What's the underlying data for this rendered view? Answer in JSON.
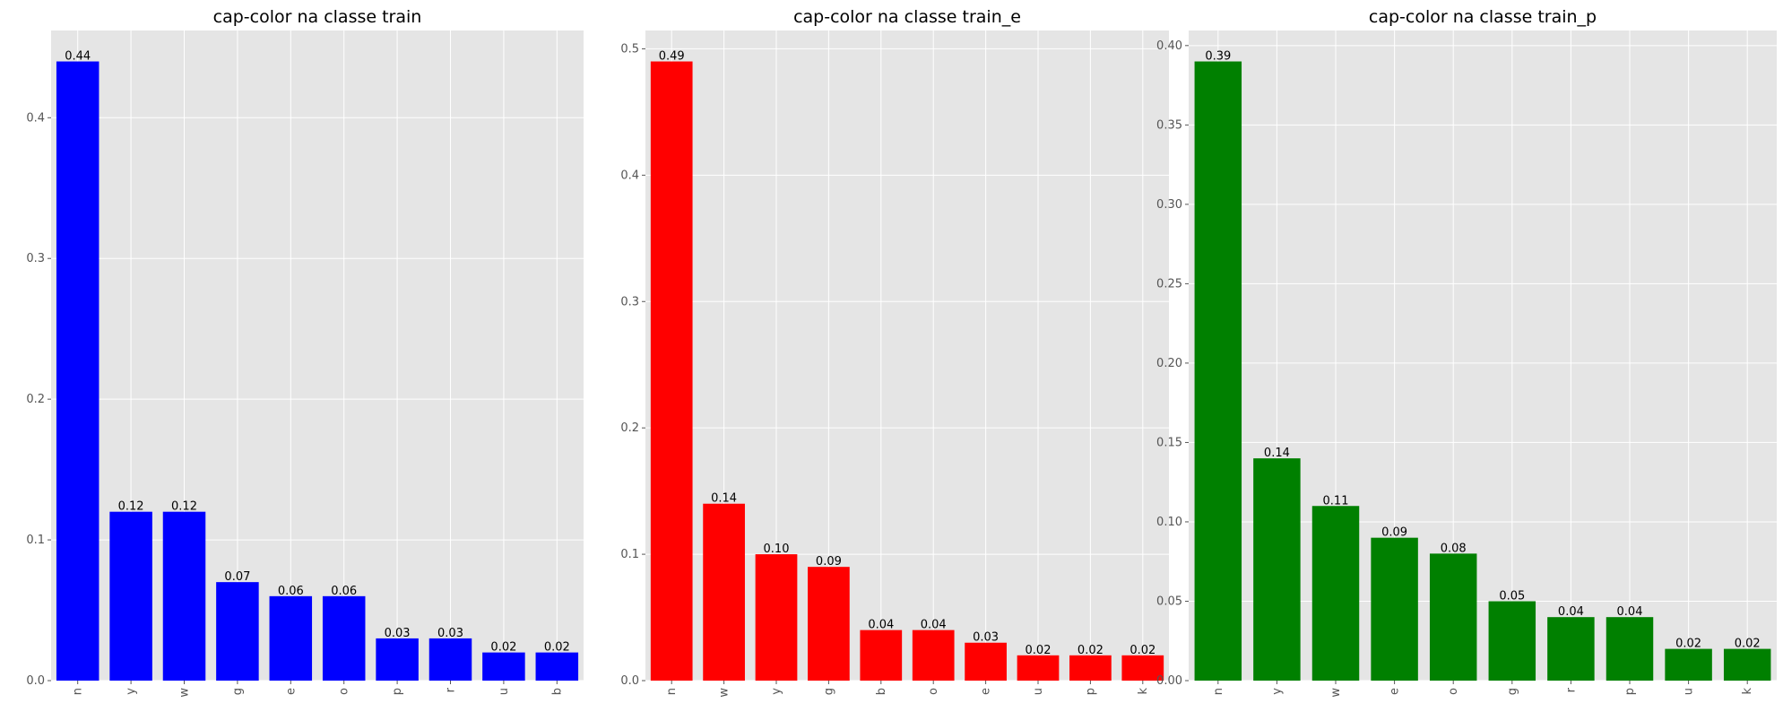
{
  "chart_data": [
    {
      "type": "bar",
      "title": "cap-color na classe train",
      "xlabel": "",
      "ylabel": "",
      "categories": [
        "n",
        "y",
        "w",
        "g",
        "e",
        "o",
        "p",
        "r",
        "u",
        "b"
      ],
      "values": [
        0.44,
        0.12,
        0.12,
        0.07,
        0.06,
        0.06,
        0.03,
        0.03,
        0.02,
        0.02
      ],
      "data_labels": [
        "0.44",
        "0.12",
        "0.12",
        "0.07",
        "0.06",
        "0.06",
        "0.03",
        "0.03",
        "0.02",
        "0.02"
      ],
      "color": "#0000ff",
      "ylim": [
        0,
        0.462
      ],
      "yticks": [
        0.0,
        0.1,
        0.2,
        0.3,
        0.4
      ],
      "ytick_labels": [
        "0.0",
        "0.1",
        "0.2",
        "0.3",
        "0.4"
      ],
      "grid": true
    },
    {
      "type": "bar",
      "title": "cap-color na classe train_e",
      "xlabel": "",
      "ylabel": "",
      "categories": [
        "n",
        "w",
        "y",
        "g",
        "b",
        "o",
        "e",
        "u",
        "p",
        "k"
      ],
      "values": [
        0.49,
        0.14,
        0.1,
        0.09,
        0.04,
        0.04,
        0.03,
        0.02,
        0.02,
        0.02
      ],
      "data_labels": [
        "0.49",
        "0.14",
        "0.10",
        "0.09",
        "0.04",
        "0.04",
        "0.03",
        "0.02",
        "0.02",
        "0.02"
      ],
      "color": "#ff0000",
      "ylim": [
        0,
        0.5145
      ],
      "yticks": [
        0.0,
        0.1,
        0.2,
        0.3,
        0.4,
        0.5
      ],
      "ytick_labels": [
        "0.0",
        "0.1",
        "0.2",
        "0.3",
        "0.4",
        "0.5"
      ],
      "grid": true
    },
    {
      "type": "bar",
      "title": "cap-color na classe train_p",
      "xlabel": "",
      "ylabel": "",
      "categories": [
        "n",
        "y",
        "w",
        "e",
        "o",
        "g",
        "r",
        "p",
        "u",
        "k"
      ],
      "values": [
        0.39,
        0.14,
        0.11,
        0.09,
        0.08,
        0.05,
        0.04,
        0.04,
        0.02,
        0.02
      ],
      "data_labels": [
        "0.39",
        "0.14",
        "0.11",
        "0.09",
        "0.08",
        "0.05",
        "0.04",
        "0.04",
        "0.02",
        "0.02"
      ],
      "color": "#008000",
      "ylim": [
        0,
        0.4095
      ],
      "yticks": [
        0.0,
        0.05,
        0.1,
        0.15,
        0.2,
        0.25,
        0.3,
        0.35,
        0.4
      ],
      "ytick_labels": [
        "0.00",
        "0.05",
        "0.10",
        "0.15",
        "0.20",
        "0.25",
        "0.30",
        "0.35",
        "0.40"
      ],
      "grid": true
    }
  ]
}
